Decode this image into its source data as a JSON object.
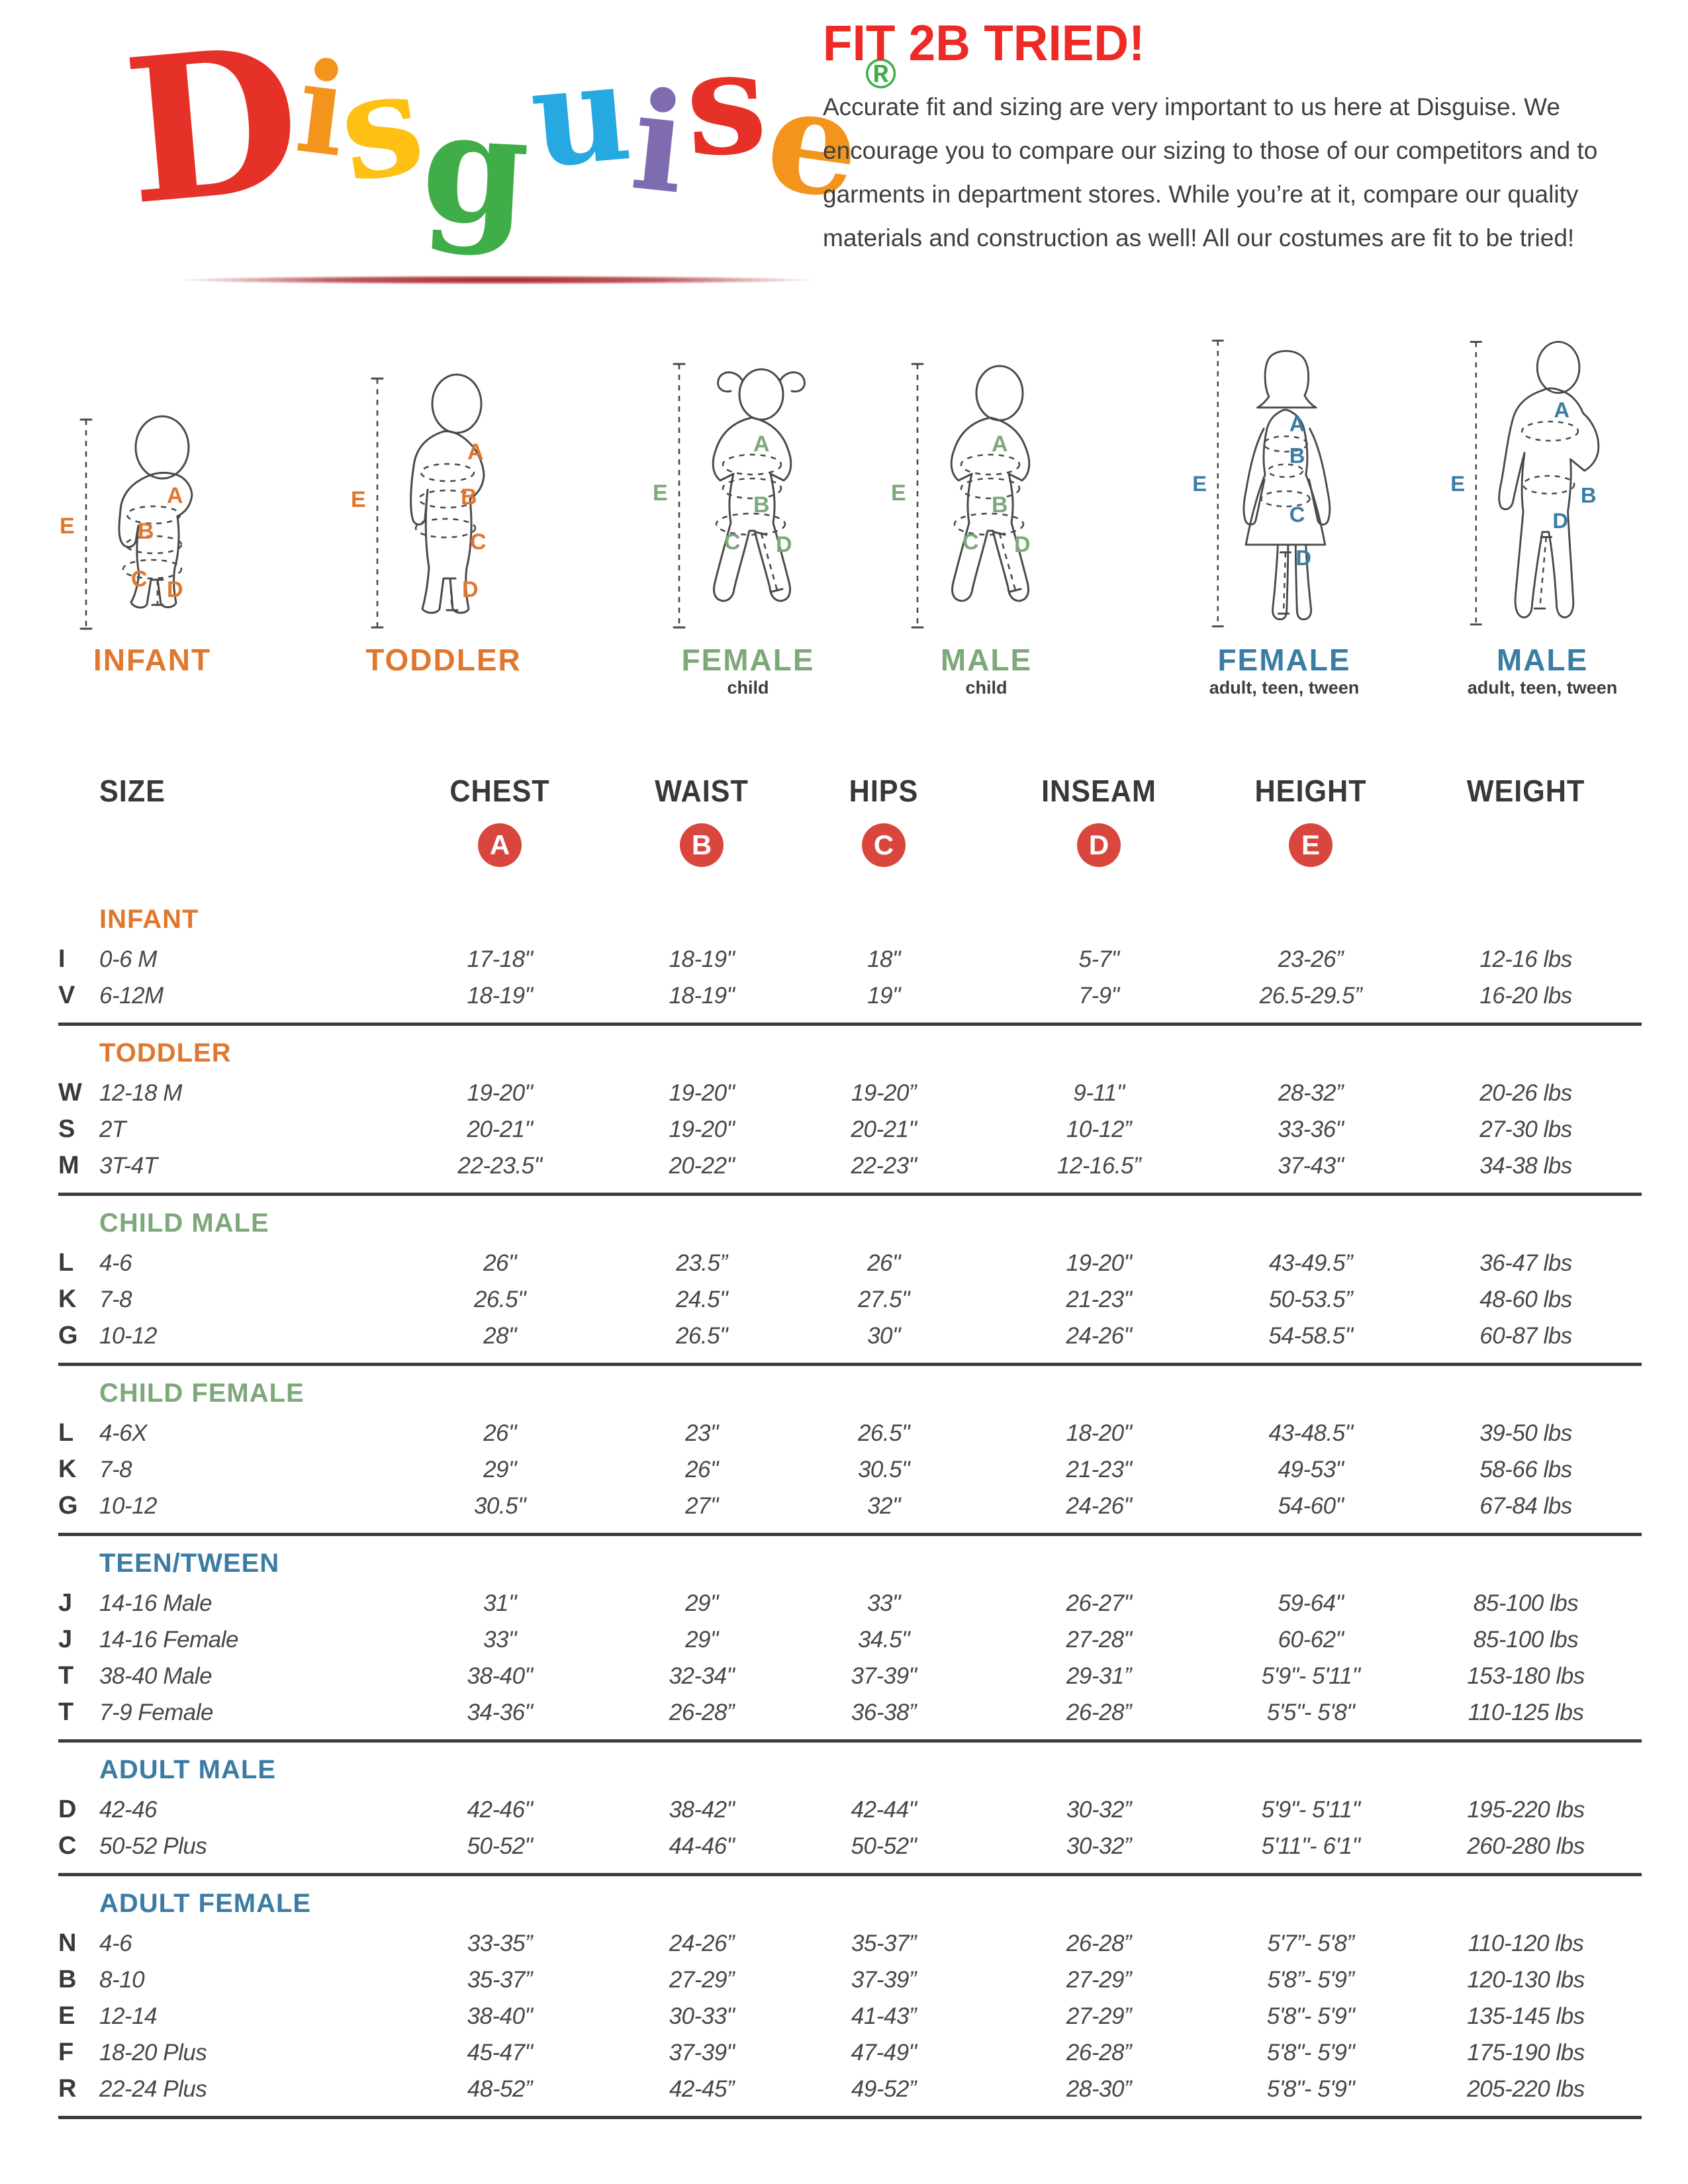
{
  "logo": {
    "letters": [
      {
        "ch": "D",
        "color": "#e53127"
      },
      {
        "ch": "i",
        "color": "#f3951d"
      },
      {
        "ch": "s",
        "color": "#fdc013"
      },
      {
        "ch": "g",
        "color": "#3fae49"
      },
      {
        "ch": "u",
        "color": "#26a9e0"
      },
      {
        "ch": "i",
        "color": "#7f6bb0"
      },
      {
        "ch": "s",
        "color": "#e53127"
      },
      {
        "ch": "e",
        "color": "#f3951d"
      }
    ],
    "registered": "®",
    "registered_color": "#3fae49"
  },
  "intro": {
    "title": "FIT 2B TRIED!",
    "body": "Accurate fit and sizing are very important to us here at Disguise. We encourage you to compare our sizing to those of our competitors and to garments in department stores. While you’re at it, compare our quality materials and construction as well! All our costumes are fit to be tried!"
  },
  "figures": [
    {
      "label": "INFANT",
      "sub": "",
      "color": "orange",
      "marks": [
        "A",
        "B",
        "C",
        "D",
        "E"
      ]
    },
    {
      "label": "TODDLER",
      "sub": "",
      "color": "orange",
      "marks": [
        "A",
        "B",
        "C",
        "D",
        "E"
      ]
    },
    {
      "label": "FEMALE",
      "sub": "child",
      "color": "green",
      "marks": [
        "A",
        "B",
        "C",
        "D",
        "E"
      ]
    },
    {
      "label": "MALE",
      "sub": "child",
      "color": "green",
      "marks": [
        "A",
        "B",
        "C",
        "D",
        "E"
      ]
    },
    {
      "label": "FEMALE",
      "sub": "adult, teen, tween",
      "color": "blue",
      "marks": [
        "A",
        "B",
        "C",
        "D",
        "E"
      ]
    },
    {
      "label": "MALE",
      "sub": "adult, teen, tween",
      "color": "blue",
      "marks": [
        "A",
        "B",
        "D",
        "E"
      ]
    }
  ],
  "table": {
    "palette": {
      "orange": "#e0772e",
      "green": "#7da87a",
      "blue": "#3b7ca4"
    },
    "circle_color": "#d9463e",
    "columns": [
      "SIZE",
      "CHEST",
      "WAIST",
      "HIPS",
      "INSEAM",
      "HEIGHT",
      "WEIGHT"
    ],
    "circles": [
      "A",
      "B",
      "C",
      "D",
      "E"
    ],
    "sections": [
      {
        "name": "INFANT",
        "color": "orange",
        "rows": [
          {
            "code": "I",
            "size": "0-6 M",
            "chest": "17-18\"",
            "waist": "18-19\"",
            "hips": "18\"",
            "inseam": "5-7\"",
            "height": "23-26”",
            "weight": "12-16 lbs"
          },
          {
            "code": "V",
            "size": "6-12M",
            "chest": "18-19\"",
            "waist": "18-19\"",
            "hips": "19\"",
            "inseam": "7-9\"",
            "height": "26.5-29.5”",
            "weight": "16-20 lbs"
          }
        ]
      },
      {
        "name": "TODDLER",
        "color": "orange",
        "rows": [
          {
            "code": "W",
            "size": "12-18 M",
            "chest": "19-20\"",
            "waist": "19-20\"",
            "hips": "19-20”",
            "inseam": "9-11\"",
            "height": "28-32”",
            "weight": "20-26 lbs"
          },
          {
            "code": "S",
            "size": "2T",
            "chest": "20-21\"",
            "waist": "19-20\"",
            "hips": "20-21\"",
            "inseam": "10-12”",
            "height": "33-36\"",
            "weight": "27-30 lbs"
          },
          {
            "code": "M",
            "size": "3T-4T",
            "chest": "22-23.5\"",
            "waist": "20-22\"",
            "hips": "22-23\"",
            "inseam": "12-16.5”",
            "height": "37-43\"",
            "weight": "34-38 lbs"
          }
        ]
      },
      {
        "name": "CHILD MALE",
        "color": "green",
        "rows": [
          {
            "code": "L",
            "size": "4-6",
            "chest": "26\"",
            "waist": "23.5”",
            "hips": "26\"",
            "inseam": "19-20\"",
            "height": "43-49.5”",
            "weight": "36-47 lbs"
          },
          {
            "code": "K",
            "size": "7-8",
            "chest": "26.5\"",
            "waist": "24.5\"",
            "hips": "27.5\"",
            "inseam": "21-23\"",
            "height": "50-53.5”",
            "weight": "48-60 lbs"
          },
          {
            "code": "G",
            "size": "10-12",
            "chest": "28\"",
            "waist": "26.5\"",
            "hips": "30\"",
            "inseam": "24-26\"",
            "height": "54-58.5\"",
            "weight": "60-87 lbs"
          }
        ]
      },
      {
        "name": "CHILD FEMALE",
        "color": "green",
        "rows": [
          {
            "code": "L",
            "size": "4-6X",
            "chest": "26\"",
            "waist": "23\"",
            "hips": "26.5\"",
            "inseam": "18-20\"",
            "height": "43-48.5\"",
            "weight": "39-50 lbs"
          },
          {
            "code": "K",
            "size": "7-8",
            "chest": "29\"",
            "waist": "26\"",
            "hips": "30.5\"",
            "inseam": "21-23\"",
            "height": "49-53\"",
            "weight": "58-66 lbs"
          },
          {
            "code": "G",
            "size": "10-12",
            "chest": "30.5\"",
            "waist": "27\"",
            "hips": "32\"",
            "inseam": "24-26\"",
            "height": "54-60\"",
            "weight": "67-84 lbs"
          }
        ]
      },
      {
        "name": "TEEN/TWEEN",
        "color": "blue",
        "rows": [
          {
            "code": "J",
            "size": "14-16 Male",
            "chest": "31\"",
            "waist": "29\"",
            "hips": "33\"",
            "inseam": "26-27\"",
            "height": "59-64\"",
            "weight": "85-100 lbs"
          },
          {
            "code": "J",
            "size": "14-16 Female",
            "chest": "33\"",
            "waist": "29\"",
            "hips": "34.5\"",
            "inseam": "27-28\"",
            "height": "60-62\"",
            "weight": "85-100 lbs"
          },
          {
            "code": "T",
            "size": "38-40 Male",
            "chest": "38-40\"",
            "waist": "32-34\"",
            "hips": "37-39\"",
            "inseam": "29-31”",
            "height": "5'9\"- 5'11\"",
            "weight": "153-180 lbs"
          },
          {
            "code": "T",
            "size": "7-9 Female",
            "chest": "34-36\"",
            "waist": "26-28”",
            "hips": "36-38”",
            "inseam": "26-28”",
            "height": "5'5\"- 5'8\"",
            "weight": "110-125 lbs"
          }
        ]
      },
      {
        "name": "ADULT MALE",
        "color": "blue",
        "rows": [
          {
            "code": "D",
            "size": "42-46",
            "chest": "42-46\"",
            "waist": "38-42\"",
            "hips": "42-44\"",
            "inseam": "30-32”",
            "height": "5'9\"- 5'11\"",
            "weight": "195-220 lbs"
          },
          {
            "code": "C",
            "size": "50-52 Plus",
            "chest": "50-52\"",
            "waist": "44-46\"",
            "hips": "50-52\"",
            "inseam": "30-32”",
            "height": "5'11\"- 6'1\"",
            "weight": "260-280 lbs"
          }
        ]
      },
      {
        "name": "ADULT FEMALE",
        "color": "blue",
        "rows": [
          {
            "code": "N",
            "size": "4-6",
            "chest": "33-35”",
            "waist": "24-26”",
            "hips": "35-37”",
            "inseam": "26-28”",
            "height": "5'7”- 5'8”",
            "weight": "110-120 lbs"
          },
          {
            "code": "B",
            "size": "8-10",
            "chest": "35-37”",
            "waist": "27-29”",
            "hips": "37-39”",
            "inseam": "27-29”",
            "height": "5'8”- 5'9”",
            "weight": "120-130 lbs"
          },
          {
            "code": "E",
            "size": "12-14",
            "chest": "38-40\"",
            "waist": "30-33\"",
            "hips": "41-43”",
            "inseam": "27-29”",
            "height": "5'8\"- 5'9\"",
            "weight": "135-145 lbs"
          },
          {
            "code": "F",
            "size": "18-20 Plus",
            "chest": "45-47\"",
            "waist": "37-39\"",
            "hips": "47-49\"",
            "inseam": "26-28”",
            "height": "5'8\"- 5'9\"",
            "weight": "175-190 lbs"
          },
          {
            "code": "R",
            "size": "22-24 Plus",
            "chest": "48-52”",
            "waist": "42-45”",
            "hips": "49-52”",
            "inseam": "28-30”",
            "height": "5'8\"- 5'9\"",
            "weight": "205-220 lbs"
          }
        ]
      }
    ]
  }
}
